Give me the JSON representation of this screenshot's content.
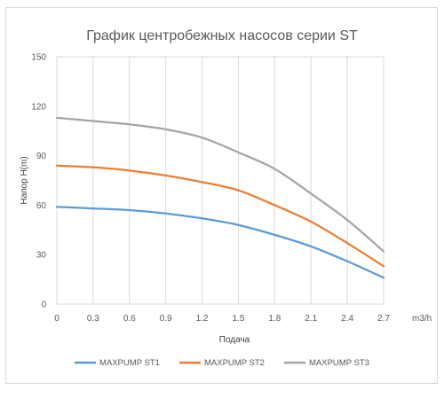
{
  "chart_data": {
    "type": "line",
    "title": "График центробежных насосов серии ST",
    "xlabel": "Подача",
    "ylabel": "Напор  H(m)",
    "x_unit": "m3/h",
    "x": [
      0,
      0.3,
      0.6,
      0.9,
      1.2,
      1.5,
      1.8,
      2.1,
      2.4,
      2.7
    ],
    "x_tick_labels": [
      "0",
      "0.3",
      "0.6",
      "0.9",
      "1.2",
      "1.5",
      "1.8",
      "2.1",
      "2.4",
      "2.7"
    ],
    "y_ticks": [
      0,
      30,
      60,
      90,
      120,
      150
    ],
    "xlim": [
      0,
      2.7
    ],
    "ylim": [
      0,
      150
    ],
    "grid": "vertical",
    "legend_position": "bottom",
    "series": [
      {
        "name": "MAXPUMP ST1",
        "color": "#5b9bd5",
        "values": [
          59,
          58,
          57,
          55,
          52,
          48,
          42,
          35,
          26,
          16
        ]
      },
      {
        "name": "MAXPUMP ST2",
        "color": "#ed7d31",
        "values": [
          84,
          83,
          81,
          78,
          74,
          69,
          60,
          50,
          37,
          23
        ]
      },
      {
        "name": "MAXPUMP ST3",
        "color": "#a5a5a5",
        "values": [
          113,
          111,
          109,
          106,
          101,
          92,
          82,
          67,
          51,
          32
        ]
      }
    ]
  }
}
